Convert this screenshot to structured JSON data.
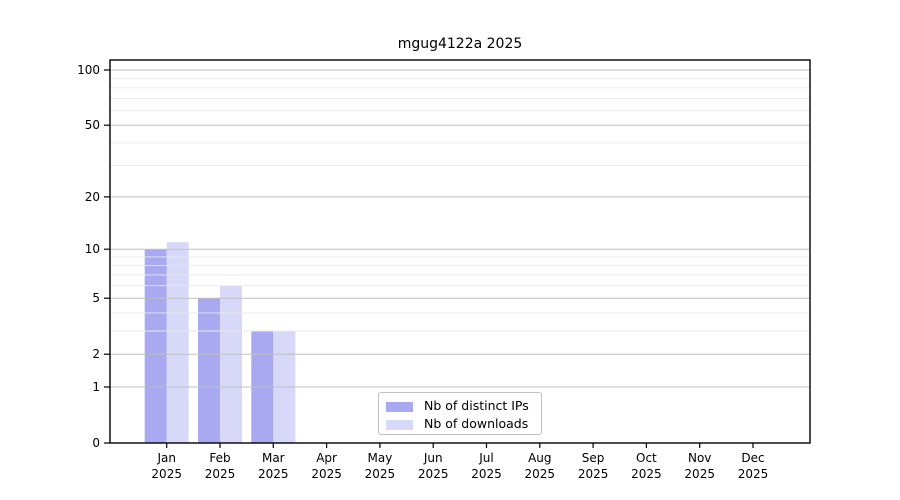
{
  "chart_data": {
    "type": "bar",
    "title": "mgug4122a 2025",
    "categories": [
      "Jan",
      "Feb",
      "Mar",
      "Apr",
      "May",
      "Jun",
      "Jul",
      "Aug",
      "Sep",
      "Oct",
      "Nov",
      "Dec"
    ],
    "category_year": "2025",
    "series": [
      {
        "name": "Nb of distinct IPs",
        "color": "#a9a9f2",
        "values": [
          10,
          5,
          3,
          0,
          0,
          0,
          0,
          0,
          0,
          0,
          0,
          0
        ]
      },
      {
        "name": "Nb of downloads",
        "color": "#d8d8f8",
        "values": [
          11,
          6,
          3,
          0,
          0,
          0,
          0,
          0,
          0,
          0,
          0,
          0
        ]
      }
    ],
    "xlabel": "",
    "ylabel": "",
    "yscale": "log1p",
    "ylim": [
      0,
      113
    ],
    "yticks": [
      0,
      1,
      2,
      5,
      10,
      20,
      50,
      100
    ],
    "minor_yticks": [
      3,
      4,
      6,
      7,
      8,
      9,
      30,
      40,
      60,
      70,
      80,
      90
    ],
    "grid": true,
    "legend_position": "bottom-center"
  },
  "colors": {
    "background": "#ffffff",
    "axis": "#000000",
    "tick_text": "#000000",
    "major_grid": "#c0c0c0",
    "minor_grid": "#e9e9e9",
    "legend_border": "#c0c0c0",
    "legend_bg": "#ffffff"
  }
}
